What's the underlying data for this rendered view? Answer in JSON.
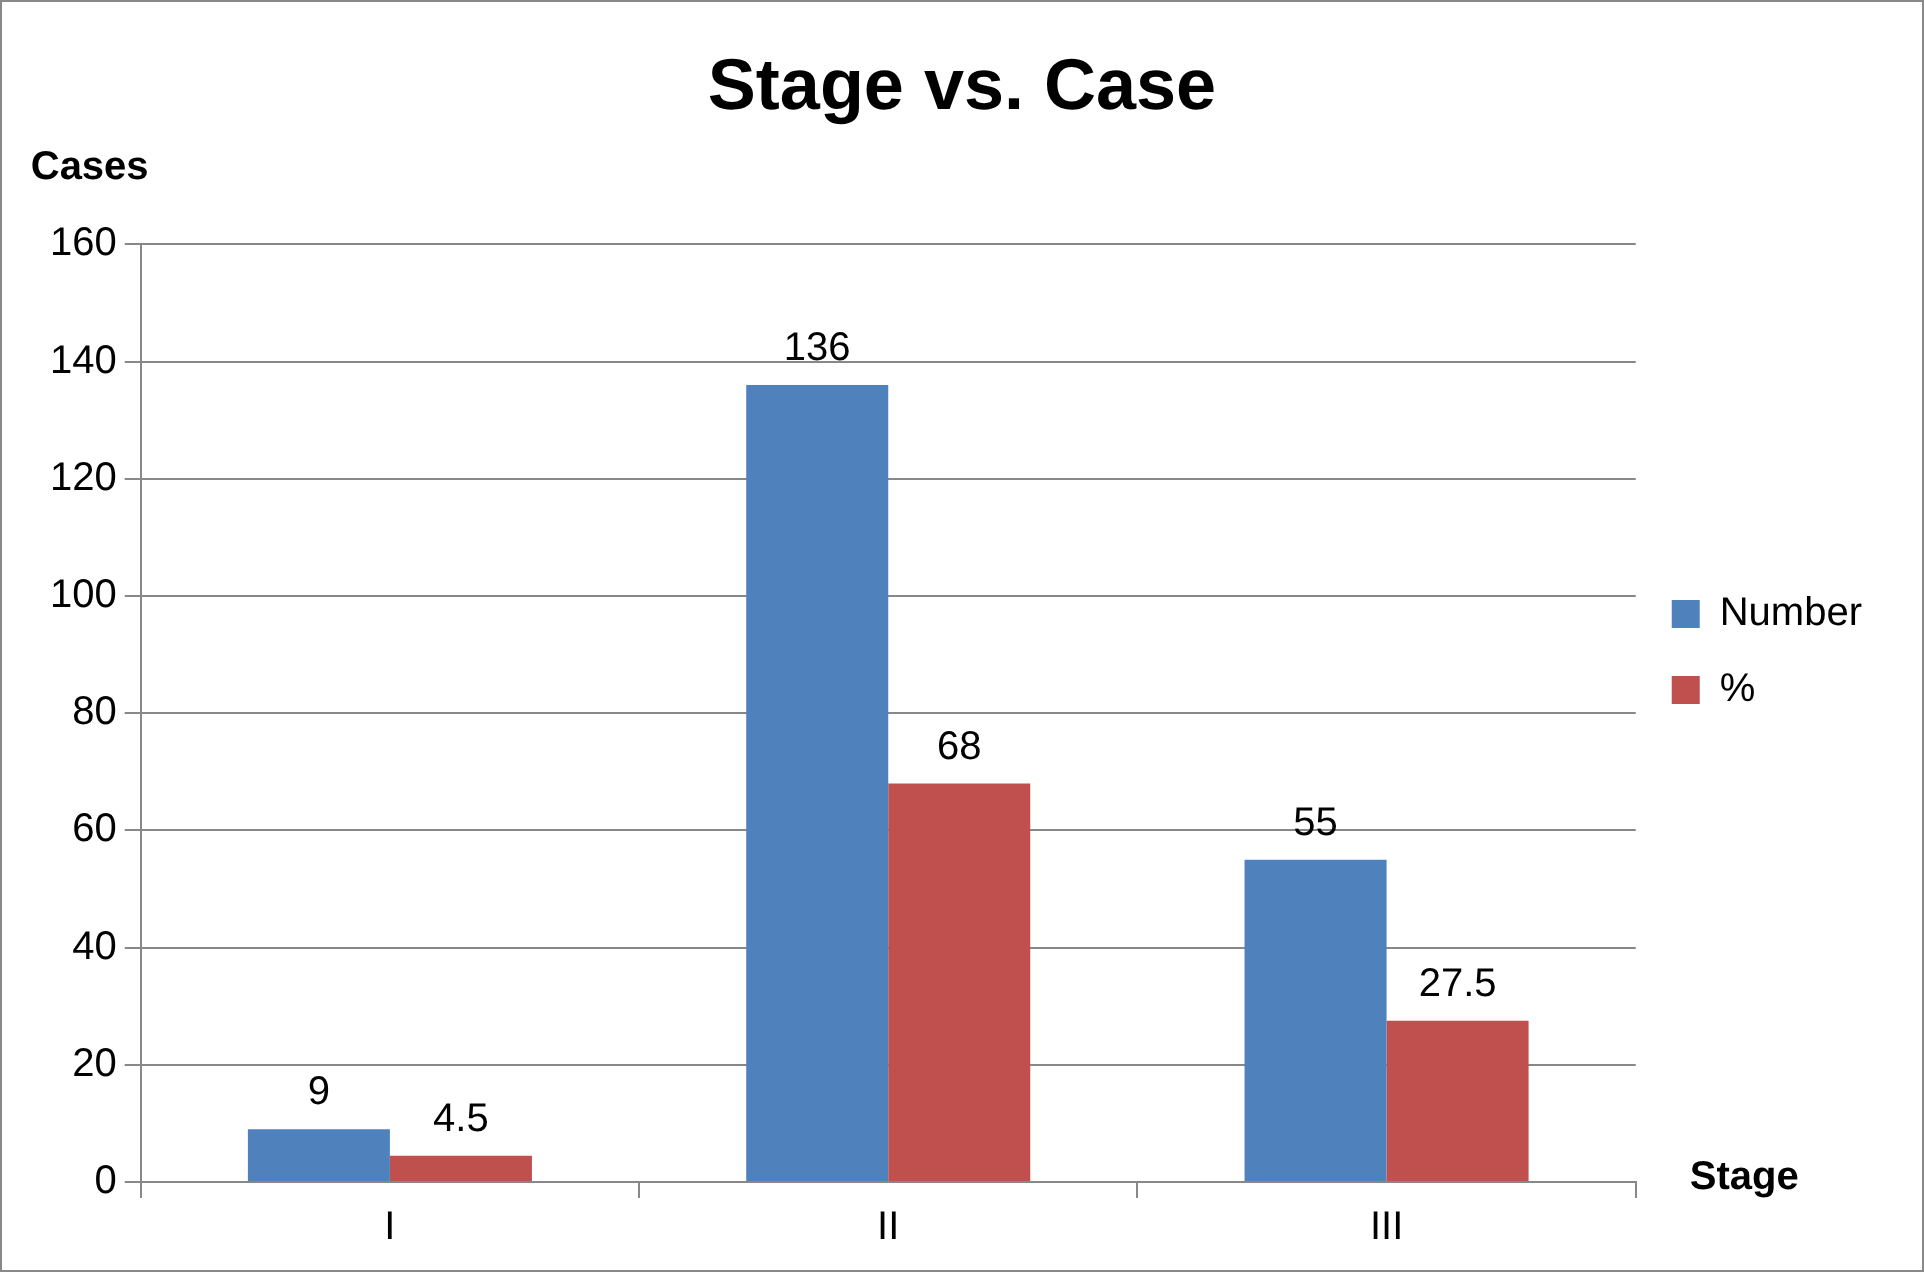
{
  "chart_data": {
    "type": "bar",
    "title": "Stage vs. Case",
    "xlabel": "Stage",
    "ylabel": "Cases",
    "categories": [
      "I",
      "II",
      "III"
    ],
    "series": [
      {
        "name": "Number",
        "color": "#4f81bd",
        "values": [
          9,
          136,
          55
        ]
      },
      {
        "name": "%",
        "color": "#c0504d",
        "values": [
          4.5,
          68,
          27.5
        ]
      }
    ],
    "ylim": [
      0,
      160
    ],
    "yticks": [
      0,
      20,
      40,
      60,
      80,
      100,
      120,
      140,
      160
    ],
    "grid": "y",
    "legend": "right",
    "data_labels": true
  }
}
